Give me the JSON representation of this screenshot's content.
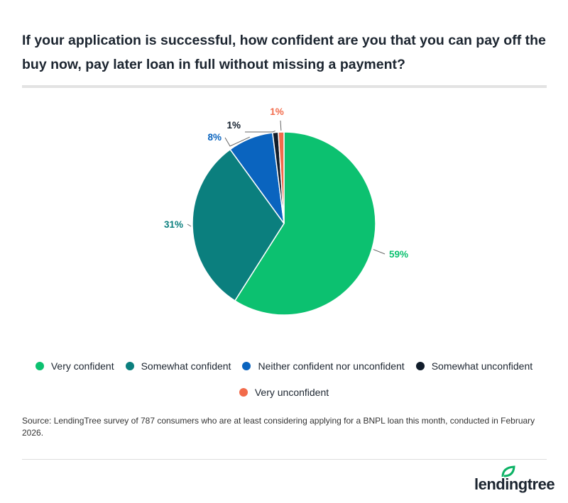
{
  "title": "If your application is successful, how confident are you that you can pay off the buy now, pay later loan in full without missing a payment?",
  "chart_data": {
    "type": "pie",
    "title": "If your application is successful, how confident are you that you can pay off the buy now, pay later loan in full without missing a payment?",
    "categories": [
      "Very confident",
      "Somewhat confident",
      "Neither confident nor unconfident",
      "Somewhat unconfident",
      "Very unconfident"
    ],
    "values": [
      59,
      31,
      8,
      1,
      1
    ],
    "labels": [
      "59%",
      "31%",
      "8%",
      "1%",
      "1%"
    ],
    "colors": [
      "#0cc170",
      "#0b7f7e",
      "#0a64bf",
      "#111d2b",
      "#f26b4b"
    ],
    "legend_position": "bottom"
  },
  "source": "Source: LendingTree survey of 787 consumers who are at least considering applying for a BNPL loan this month, conducted in February 2026.",
  "logo": {
    "text": "lendingtree",
    "icon": "leaf-icon",
    "color": "#0cb265"
  }
}
